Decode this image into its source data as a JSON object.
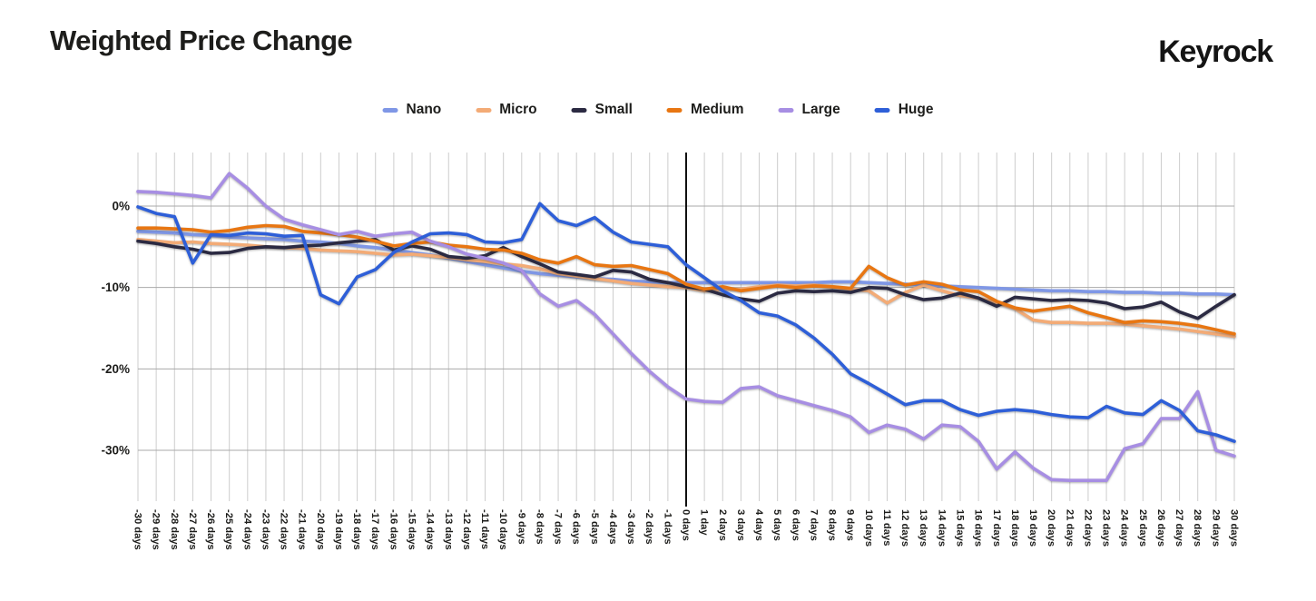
{
  "page": {
    "title": "Weighted Price Change",
    "brand": "Keyrock"
  },
  "colors": {
    "grid_vertical": "#cdcdcd",
    "grid_horizontal": "#a9a9a9",
    "zero_line": "#111111",
    "text": "#1d1d1b"
  },
  "chart_data": {
    "type": "line",
    "title": "Weighted Price Change",
    "xlabel": "",
    "ylabel": "",
    "grid": {
      "vertical": true,
      "horizontal": true
    },
    "legend_position": "top",
    "ylim": [
      -35.5,
      4.8
    ],
    "y_ticks": [
      0,
      -10,
      -20,
      -30
    ],
    "y_tick_labels": [
      "0%",
      "-10%",
      "-20%",
      "-30%"
    ],
    "zero_marker_day": 0,
    "x": [
      -30,
      -29,
      -28,
      -27,
      -26,
      -25,
      -24,
      -23,
      -22,
      -21,
      -20,
      -19,
      -18,
      -17,
      -16,
      -15,
      -14,
      -13,
      -12,
      -11,
      -10,
      -9,
      -8,
      -7,
      -6,
      -5,
      -4,
      -3,
      -2,
      -1,
      0,
      1,
      2,
      3,
      4,
      5,
      6,
      7,
      8,
      9,
      10,
      11,
      12,
      13,
      14,
      15,
      16,
      17,
      18,
      19,
      20,
      21,
      22,
      23,
      24,
      25,
      26,
      27,
      28,
      29,
      30
    ],
    "x_tick_labels": [
      "-30 days",
      "-29 days",
      "-28 days",
      "-27 days",
      "-26 days",
      "-25 days",
      "-24 days",
      "-23 days",
      "-22 days",
      "-21 days",
      "-20 days",
      "-19 days",
      "-18 days",
      "-17 days",
      "-16 days",
      "-15 days",
      "-14 days",
      "-13 days",
      "-12 days",
      "-11 days",
      "-10 days",
      "-9 days",
      "-8 days",
      "-7 days",
      "-6 days",
      "-5 days",
      "-4 days",
      "-3 days",
      "-2 days",
      "-1 days",
      "0 days",
      "1 day",
      "2 days",
      "3 days",
      "4 days",
      "5 days",
      "6 days",
      "7 days",
      "8 days",
      "9 days",
      "10 days",
      "11 days",
      "12 days",
      "13 days",
      "14 days",
      "15 days",
      "16 days",
      "17 days",
      "18 days",
      "19 days",
      "20 days",
      "21 days",
      "22 days",
      "23 days",
      "24 days",
      "25 days",
      "26 days",
      "27 days",
      "28 days",
      "29 days",
      "30 days"
    ],
    "series": [
      {
        "name": "Nano",
        "color": "#7f97e6",
        "values": [
          -3.1,
          -3.2,
          -3.3,
          -3.5,
          -3.6,
          -3.8,
          -3.9,
          -4.0,
          -4.1,
          -4.3,
          -4.4,
          -4.6,
          -4.9,
          -5.1,
          -5.4,
          -5.7,
          -6.0,
          -6.4,
          -6.8,
          -7.2,
          -7.6,
          -8.0,
          -8.3,
          -8.5,
          -8.7,
          -8.9,
          -9.0,
          -9.2,
          -9.3,
          -9.4,
          -9.4,
          -9.4,
          -9.4,
          -9.4,
          -9.4,
          -9.4,
          -9.4,
          -9.4,
          -9.3,
          -9.3,
          -9.4,
          -9.5,
          -9.6,
          -9.7,
          -9.8,
          -9.9,
          -10.0,
          -10.1,
          -10.2,
          -10.3,
          -10.4,
          -10.4,
          -10.5,
          -10.5,
          -10.6,
          -10.6,
          -10.7,
          -10.7,
          -10.8,
          -10.8,
          -10.9
        ]
      },
      {
        "name": "Micro",
        "color": "#f3ab76",
        "values": [
          -4.1,
          -4.3,
          -4.5,
          -4.4,
          -4.6,
          -4.7,
          -4.8,
          -5.0,
          -5.1,
          -5.2,
          -5.4,
          -5.5,
          -5.6,
          -5.8,
          -6.0,
          -5.9,
          -6.1,
          -6.3,
          -6.6,
          -6.8,
          -7.1,
          -7.3,
          -7.7,
          -8.3,
          -8.6,
          -8.9,
          -9.2,
          -9.5,
          -9.7,
          -9.9,
          -10.0,
          -10.4,
          -10.2,
          -10.2,
          -9.9,
          -9.7,
          -9.8,
          -9.7,
          -9.9,
          -10.2,
          -10.4,
          -11.9,
          -10.6,
          -9.7,
          -10.4,
          -11.0,
          -11.3,
          -11.9,
          -12.6,
          -14.0,
          -14.3,
          -14.3,
          -14.4,
          -14.4,
          -14.5,
          -14.7,
          -14.9,
          -15.1,
          -15.4,
          -15.7,
          -16.0
        ]
      },
      {
        "name": "Small",
        "color": "#2b2a42",
        "values": [
          -4.3,
          -4.6,
          -5.0,
          -5.3,
          -5.8,
          -5.7,
          -5.2,
          -5.0,
          -5.1,
          -4.9,
          -4.8,
          -4.5,
          -4.3,
          -4.1,
          -5.4,
          -4.9,
          -5.3,
          -6.2,
          -6.4,
          -6.1,
          -5.1,
          -6.2,
          -7.1,
          -8.1,
          -8.4,
          -8.7,
          -7.9,
          -8.1,
          -9.0,
          -9.4,
          -9.9,
          -10.2,
          -10.9,
          -11.4,
          -11.7,
          -10.7,
          -10.4,
          -10.5,
          -10.4,
          -10.6,
          -10.0,
          -10.1,
          -10.9,
          -11.5,
          -11.3,
          -10.7,
          -11.3,
          -12.3,
          -11.2,
          -11.4,
          -11.6,
          -11.5,
          -11.6,
          -11.9,
          -12.6,
          -12.4,
          -11.8,
          -13.0,
          -13.8,
          -12.3,
          -10.9
        ]
      },
      {
        "name": "Medium",
        "color": "#e87612",
        "values": [
          -2.7,
          -2.7,
          -2.8,
          -2.9,
          -3.2,
          -3.0,
          -2.6,
          -2.4,
          -2.5,
          -3.1,
          -3.3,
          -3.5,
          -3.8,
          -4.3,
          -4.9,
          -4.6,
          -4.4,
          -4.8,
          -5.0,
          -5.3,
          -5.4,
          -5.8,
          -6.6,
          -7.0,
          -6.2,
          -7.2,
          -7.4,
          -7.3,
          -7.8,
          -8.3,
          -9.6,
          -10.2,
          -9.9,
          -10.4,
          -10.1,
          -9.8,
          -10.0,
          -9.8,
          -9.9,
          -10.1,
          -7.4,
          -8.8,
          -9.7,
          -9.3,
          -9.6,
          -10.3,
          -10.5,
          -11.7,
          -12.5,
          -12.9,
          -12.6,
          -12.3,
          -13.1,
          -13.7,
          -14.3,
          -14.1,
          -14.2,
          -14.4,
          -14.7,
          -15.2,
          -15.7
        ]
      },
      {
        "name": "Large",
        "color": "#a78ee3",
        "values": [
          1.8,
          1.7,
          1.5,
          1.3,
          1.0,
          4.0,
          2.2,
          0.0,
          -1.6,
          -2.3,
          -2.9,
          -3.5,
          -3.1,
          -3.7,
          -3.4,
          -3.2,
          -4.3,
          -5.0,
          -5.9,
          -6.4,
          -7.0,
          -7.9,
          -10.8,
          -12.3,
          -11.6,
          -13.3,
          -15.7,
          -18.1,
          -20.3,
          -22.2,
          -23.7,
          -24.0,
          -24.1,
          -22.4,
          -22.2,
          -23.3,
          -23.9,
          -24.5,
          -25.1,
          -25.9,
          -27.8,
          -26.9,
          -27.4,
          -28.6,
          -26.9,
          -27.1,
          -28.9,
          -32.3,
          -30.2,
          -32.2,
          -33.6,
          -33.7,
          -33.7,
          -33.7,
          -29.8,
          -29.2,
          -26.1,
          -26.1,
          -22.8,
          -30.0,
          -30.7
        ]
      },
      {
        "name": "Huge",
        "color": "#2e5fd8",
        "values": [
          -0.1,
          -0.9,
          -1.3,
          -7.0,
          -3.5,
          -3.6,
          -3.3,
          -3.4,
          -3.7,
          -3.6,
          -10.9,
          -12.0,
          -8.7,
          -7.8,
          -5.7,
          -4.4,
          -3.4,
          -3.3,
          -3.5,
          -4.4,
          -4.5,
          -4.1,
          0.3,
          -1.8,
          -2.4,
          -1.4,
          -3.2,
          -4.4,
          -4.7,
          -5.0,
          -7.2,
          -8.8,
          -10.4,
          -11.6,
          -13.1,
          -13.5,
          -14.6,
          -16.2,
          -18.2,
          -20.6,
          -21.8,
          -23.1,
          -24.4,
          -23.9,
          -23.9,
          -25.0,
          -25.7,
          -25.2,
          -25.0,
          -25.2,
          -25.6,
          -25.9,
          -26.0,
          -24.6,
          -25.4,
          -25.6,
          -23.9,
          -25.1,
          -27.6,
          -28.1,
          -28.9
        ]
      }
    ]
  }
}
